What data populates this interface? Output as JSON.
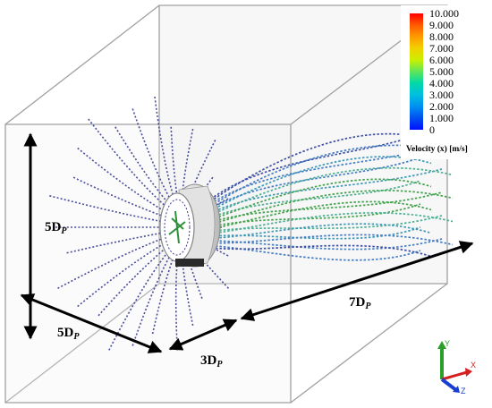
{
  "legend": {
    "title": "Velocity (x) [m/s]",
    "labels": [
      "10.000",
      "9.000",
      "8.000",
      "7.000",
      "6.000",
      "5.000",
      "4.000",
      "3.000",
      "2.000",
      "1.000",
      "0"
    ],
    "colors": [
      "#ff0000",
      "#ff5a00",
      "#ff9a00",
      "#f2d100",
      "#c9f000",
      "#5fe65a",
      "#00d9a8",
      "#00bfe0",
      "#0090f0",
      "#0050f0",
      "#0010ff"
    ]
  },
  "dimensions": {
    "height": {
      "value": "5D",
      "sub": "P"
    },
    "width": {
      "value": "5D",
      "sub": "P"
    },
    "upstream": {
      "value": "3D",
      "sub": "P"
    },
    "downstream": {
      "value": "7D",
      "sub": "P"
    }
  },
  "triad": {
    "x": "X",
    "y": "Y",
    "z": "Z"
  },
  "colors": {
    "box_edge": "#9a9a9a",
    "dimension_arrow": "#000000",
    "streamline_upstream": "#2a2f8a",
    "streamline_wake": "#2a8fa0",
    "streamline_core": "#3fa62a",
    "rotor": "#e6e6e6"
  }
}
